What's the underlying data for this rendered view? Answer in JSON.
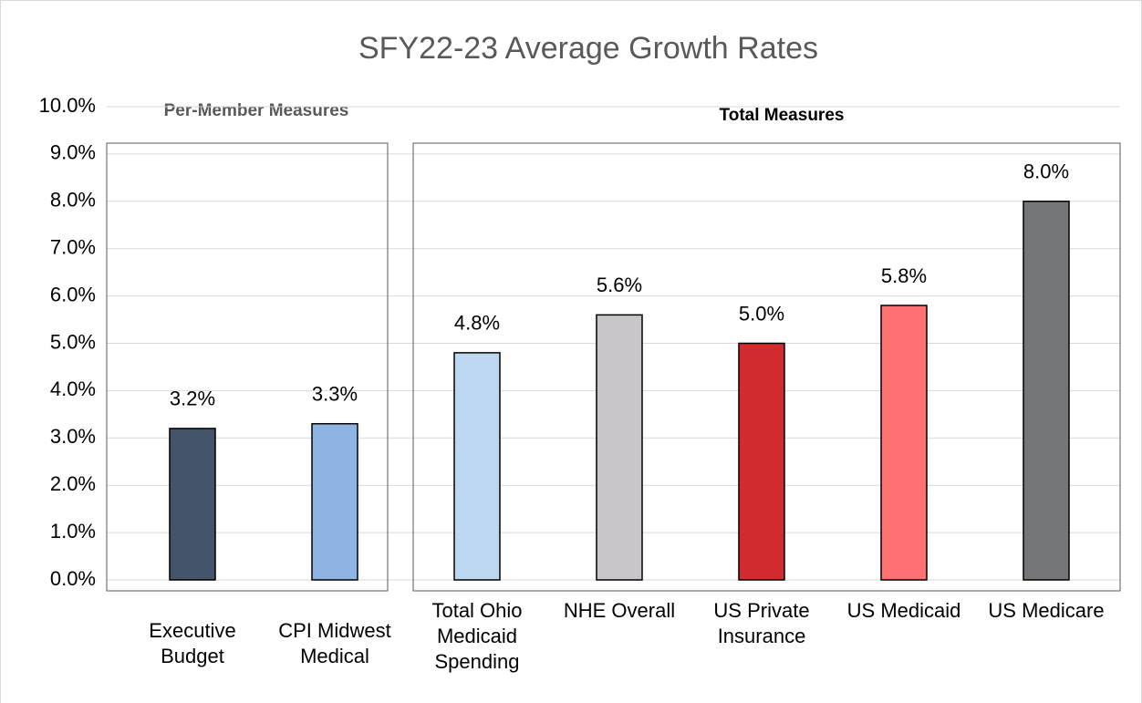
{
  "chart_data": {
    "type": "bar",
    "title": "SFY22-23 Average Growth Rates",
    "group_labels": [
      "Per-Member Measures",
      "Total Measures"
    ],
    "categories": [
      "Executive Budget",
      "CPI Midwest Medical",
      "Total Ohio Medicaid Spending",
      "NHE Overall",
      "US Private Insurance",
      "US Medicaid",
      "US Medicare"
    ],
    "values": [
      3.2,
      3.3,
      4.8,
      5.6,
      5.0,
      5.8,
      8.0
    ],
    "value_labels": [
      "3.2%",
      "3.3%",
      "4.8%",
      "5.6%",
      "5.0%",
      "5.8%",
      "8.0%"
    ],
    "colors": [
      "#44546a",
      "#8db4e2",
      "#bdd7ee",
      "#c9c5cb",
      "#d12b30",
      "#ff7070",
      "#75767a"
    ],
    "ylim": [
      0,
      10
    ],
    "yticks": [
      {
        "value": 0,
        "label": "0.0%"
      },
      {
        "value": 1,
        "label": "1.0%"
      },
      {
        "value": 2,
        "label": "2.0%"
      },
      {
        "value": 3,
        "label": "3.0%"
      },
      {
        "value": 4,
        "label": "4.0%"
      },
      {
        "value": 5,
        "label": "5.0%"
      },
      {
        "value": 6,
        "label": "6.0%"
      },
      {
        "value": 7,
        "label": "7.0%"
      },
      {
        "value": 8,
        "label": "8.0%"
      },
      {
        "value": 9,
        "label": "9.0%"
      },
      {
        "value": 10,
        "label": "10.0%"
      }
    ],
    "grid": true
  }
}
